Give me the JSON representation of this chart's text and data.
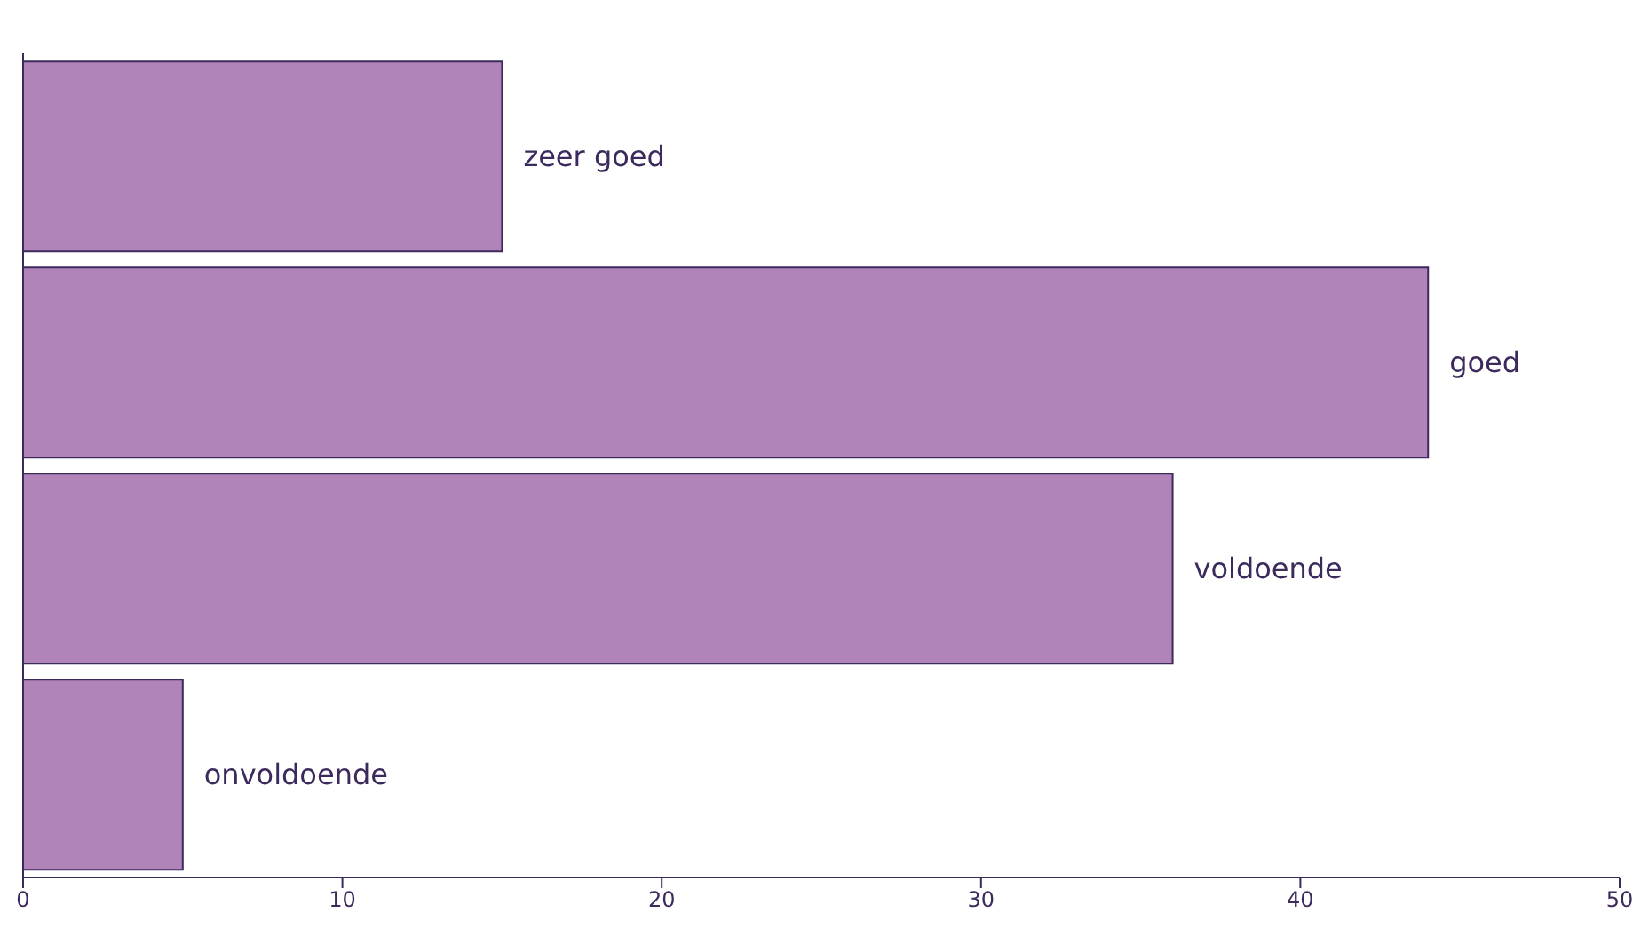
{
  "chart_data": {
    "type": "bar",
    "orientation": "horizontal",
    "categories": [
      "zeer goed",
      "goed",
      "voldoende",
      "onvoldoende"
    ],
    "values": [
      15,
      44,
      36,
      5
    ],
    "color": "#b084b8",
    "xlim": [
      0,
      50
    ],
    "xticks": [
      0,
      10,
      20,
      30,
      40,
      50
    ],
    "tick_labels": "x"
  }
}
